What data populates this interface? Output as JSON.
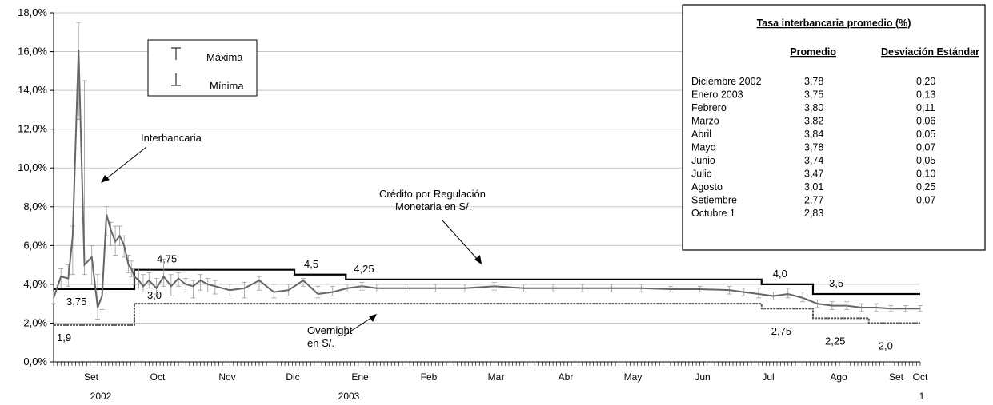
{
  "chart_data": {
    "type": "line",
    "ylim": [
      0,
      18
    ],
    "y_ticks": [
      "0,0%",
      "2,0%",
      "4,0%",
      "6,0%",
      "8,0%",
      "10,0%",
      "12,0%",
      "14,0%",
      "16,0%",
      "18,0%"
    ],
    "grid": true,
    "x_month_labels": [
      "Set",
      "Oct",
      "Nov",
      "Dic",
      "Ene",
      "Feb",
      "Mar",
      "Abr",
      "May",
      "Jun",
      "Jul",
      "Ago",
      "Set",
      "Oct"
    ],
    "x_year_labels": [
      "2002",
      "2003",
      "1"
    ],
    "legend": {
      "max_label": "Máxima",
      "min_label": "Mínima"
    },
    "annotations": {
      "interbancaria": "Interbancaria",
      "credito_line1": "Crédito por Regulación",
      "credito_line2": "Monetaria en S/.",
      "overnight_line1": "Overnight",
      "overnight_line2": "en S/."
    },
    "series": [
      {
        "name": "Crédito por Regulación Monetaria en S/.",
        "color": "#000000",
        "steps": [
          {
            "from": 0,
            "to": 5.5,
            "value": 3.75,
            "label": "3,75"
          },
          {
            "from": 5.5,
            "to": 16.4,
            "value": 4.75,
            "label": "4,75"
          },
          {
            "from": 16.4,
            "to": 19.9,
            "value": 4.5,
            "label": "4,5"
          },
          {
            "from": 19.9,
            "to": 48.2,
            "value": 4.25,
            "label": "4,25"
          },
          {
            "from": 48.2,
            "to": 51.7,
            "value": 4.0,
            "label": "4,0"
          },
          {
            "from": 51.7,
            "to": 59,
            "value": 3.5,
            "label": "3,5"
          }
        ]
      },
      {
        "name": "Overnight en S/.",
        "color": "#555555",
        "steps": [
          {
            "from": 0,
            "to": 5.5,
            "value": 1.9,
            "label": "1,9"
          },
          {
            "from": 5.5,
            "to": 48.2,
            "value": 3.0,
            "label": "3,0"
          },
          {
            "from": 48.2,
            "to": 51.7,
            "value": 2.75,
            "label": "2,75"
          },
          {
            "from": 51.7,
            "to": 55.5,
            "value": 2.25,
            "label": "2,25"
          },
          {
            "from": 55.5,
            "to": 59,
            "value": 2.0,
            "label": "2,0"
          }
        ]
      },
      {
        "name": "Interbancaria",
        "color": "#666666",
        "x": [
          0,
          0.5,
          1,
          1.3,
          1.7,
          2.1,
          2.6,
          3.0,
          3.3,
          3.6,
          3.9,
          4.2,
          4.5,
          4.8,
          5.1,
          5.3,
          5.5,
          5.8,
          6.1,
          6.5,
          7.0,
          7.5,
          8.0,
          8.5,
          9.0,
          9.5,
          10.0,
          10.5,
          11,
          12,
          13,
          14,
          15,
          16,
          17,
          18,
          19,
          20,
          21,
          22,
          24,
          26,
          28,
          30,
          32,
          34,
          36,
          38,
          40,
          42,
          44,
          46,
          47,
          48,
          49,
          50,
          51,
          52,
          53,
          54,
          55,
          56,
          57,
          58,
          59
        ],
        "values": [
          3.3,
          4.4,
          4.3,
          6.5,
          16.1,
          5.0,
          5.4,
          2.8,
          3.4,
          7.6,
          6.8,
          6.2,
          6.5,
          6.0,
          5.0,
          4.8,
          4.4,
          4.2,
          3.9,
          4.2,
          3.8,
          4.4,
          3.9,
          4.3,
          4.0,
          3.9,
          4.2,
          4.0,
          3.9,
          3.7,
          3.8,
          4.2,
          3.6,
          3.7,
          4.2,
          3.5,
          3.6,
          3.8,
          3.9,
          3.8,
          3.8,
          3.8,
          3.8,
          3.9,
          3.8,
          3.8,
          3.8,
          3.8,
          3.8,
          3.75,
          3.75,
          3.7,
          3.6,
          3.5,
          3.4,
          3.5,
          3.3,
          3.0,
          2.9,
          2.9,
          2.8,
          2.8,
          2.75,
          2.75,
          2.75
        ],
        "max": [
          3.6,
          4.8,
          5.0,
          7.0,
          17.5,
          14.5,
          6.0,
          4.5,
          4.0,
          8.0,
          7.2,
          7.0,
          7.0,
          6.5,
          5.5,
          5.2,
          4.8,
          4.8,
          4.5,
          4.6,
          4.3,
          5.3,
          4.5,
          4.6,
          4.3,
          4.2,
          4.5,
          4.3,
          4.2,
          4.0,
          4.1,
          4.4,
          4.0,
          4.0,
          4.3,
          3.9,
          3.9,
          4.0,
          4.1,
          4.0,
          4.0,
          4.0,
          4.0,
          4.1,
          4.0,
          4.0,
          4.0,
          4.0,
          4.0,
          3.9,
          3.9,
          3.9,
          3.8,
          3.8,
          3.6,
          3.8,
          3.6,
          3.2,
          3.1,
          3.1,
          3.0,
          3.0,
          2.9,
          2.9,
          2.9
        ],
        "min": [
          3.0,
          3.8,
          3.9,
          4.5,
          12.5,
          4.5,
          4.0,
          2.2,
          2.7,
          6.5,
          6.0,
          5.5,
          6.0,
          5.4,
          4.6,
          4.4,
          4.0,
          3.8,
          3.6,
          3.8,
          3.5,
          3.9,
          3.4,
          3.9,
          3.6,
          3.3,
          3.7,
          3.6,
          3.5,
          3.4,
          3.3,
          3.7,
          3.3,
          3.4,
          3.9,
          3.3,
          3.4,
          3.6,
          3.7,
          3.6,
          3.6,
          3.6,
          3.6,
          3.7,
          3.6,
          3.6,
          3.6,
          3.6,
          3.6,
          3.6,
          3.6,
          3.5,
          3.4,
          3.3,
          3.2,
          3.3,
          3.1,
          2.8,
          2.7,
          2.7,
          2.6,
          2.6,
          2.6,
          2.6,
          2.6
        ]
      }
    ],
    "table": {
      "title": "Tasa interbancaria promedio (%)",
      "col_promedio": "Promedio",
      "col_desviacion": "Desviación Estándar",
      "rows": [
        {
          "mes": "Diciembre 2002",
          "promedio": "3,78",
          "desviacion": "0,20"
        },
        {
          "mes": "Enero 2003",
          "promedio": "3,75",
          "desviacion": "0,13"
        },
        {
          "mes": "Febrero",
          "promedio": "3,80",
          "desviacion": "0,11"
        },
        {
          "mes": "Marzo",
          "promedio": "3,82",
          "desviacion": "0,06"
        },
        {
          "mes": "Abril",
          "promedio": "3,84",
          "desviacion": "0,05"
        },
        {
          "mes": "Mayo",
          "promedio": "3,78",
          "desviacion": "0,07"
        },
        {
          "mes": "Junio",
          "promedio": "3,74",
          "desviacion": "0,05"
        },
        {
          "mes": "Julio",
          "promedio": "3,47",
          "desviacion": "0,10"
        },
        {
          "mes": "Agosto",
          "promedio": "3,01",
          "desviacion": "0,25"
        },
        {
          "mes": "Setiembre",
          "promedio": "2,77",
          "desviacion": "0,07"
        },
        {
          "mes": "Octubre 1",
          "promedio": "2,83",
          "desviacion": ""
        }
      ]
    }
  }
}
